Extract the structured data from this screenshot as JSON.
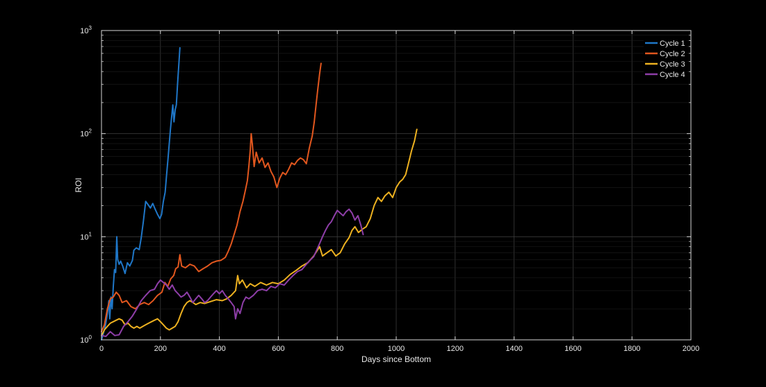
{
  "chart_data": {
    "type": "line",
    "title": "",
    "xlabel": "Days since Bottom",
    "ylabel": "ROI",
    "xlim": [
      0,
      2000
    ],
    "ylim": [
      1,
      1000
    ],
    "y_scale": "log",
    "grid": true,
    "legend_position": "top-right",
    "x_ticks": [
      0,
      200,
      400,
      600,
      800,
      1000,
      1200,
      1400,
      1600,
      1800,
      2000
    ],
    "x_tick_labels": [
      "0",
      "200",
      "400",
      "600",
      "800",
      "1000",
      "1200",
      "1400",
      "1600",
      "1800",
      "2000"
    ],
    "y_ticks": [
      {
        "value": 1,
        "base": "10",
        "exp": "0"
      },
      {
        "value": 10,
        "base": "10",
        "exp": "1"
      },
      {
        "value": 100,
        "base": "10",
        "exp": "2"
      },
      {
        "value": 1000,
        "base": "10",
        "exp": "3"
      }
    ],
    "colors": {
      "background": "#000000",
      "axes_face": "#000000",
      "axis_line": "#d9d9d9",
      "grid": "#3a3a3a",
      "text": "#e8e8e8"
    },
    "series": [
      {
        "name": "Cycle 1",
        "color": "#1f77c8",
        "points": [
          [
            0,
            1.0
          ],
          [
            8,
            1.2
          ],
          [
            14,
            1.4
          ],
          [
            20,
            1.8
          ],
          [
            25,
            2.4
          ],
          [
            28,
            1.6
          ],
          [
            32,
            2.6
          ],
          [
            36,
            2.0
          ],
          [
            40,
            3.3
          ],
          [
            44,
            4.8
          ],
          [
            48,
            4.5
          ],
          [
            52,
            10.0
          ],
          [
            55,
            6.0
          ],
          [
            60,
            5.4
          ],
          [
            65,
            5.8
          ],
          [
            72,
            5.2
          ],
          [
            80,
            4.4
          ],
          [
            88,
            5.6
          ],
          [
            96,
            5.2
          ],
          [
            105,
            5.9
          ],
          [
            110,
            7.4
          ],
          [
            118,
            7.8
          ],
          [
            128,
            7.5
          ],
          [
            135,
            9.8
          ],
          [
            142,
            14.0
          ],
          [
            150,
            22.0
          ],
          [
            158,
            20.5
          ],
          [
            166,
            19.0
          ],
          [
            174,
            21.0
          ],
          [
            182,
            18.5
          ],
          [
            190,
            16.5
          ],
          [
            198,
            15.0
          ],
          [
            204,
            16.5
          ],
          [
            210,
            22.0
          ],
          [
            216,
            27.0
          ],
          [
            221,
            40.0
          ],
          [
            226,
            58.0
          ],
          [
            230,
            80.0
          ],
          [
            234,
            110.0
          ],
          [
            238,
            145.0
          ],
          [
            242,
            190.0
          ],
          [
            246,
            130.0
          ],
          [
            250,
            170.0
          ],
          [
            254,
            190.0
          ],
          [
            258,
            300.0
          ],
          [
            262,
            450.0
          ],
          [
            266,
            680.0
          ]
        ]
      },
      {
        "name": "Cycle 2",
        "color": "#e2571e",
        "points": [
          [
            0,
            1.2
          ],
          [
            10,
            1.4
          ],
          [
            20,
            2.0
          ],
          [
            30,
            2.5
          ],
          [
            40,
            2.6
          ],
          [
            50,
            2.9
          ],
          [
            60,
            2.7
          ],
          [
            70,
            2.3
          ],
          [
            85,
            2.4
          ],
          [
            100,
            2.1
          ],
          [
            115,
            2.0
          ],
          [
            130,
            2.2
          ],
          [
            145,
            2.3
          ],
          [
            160,
            2.2
          ],
          [
            175,
            2.4
          ],
          [
            190,
            2.7
          ],
          [
            205,
            2.9
          ],
          [
            215,
            3.6
          ],
          [
            225,
            3.3
          ],
          [
            235,
            3.9
          ],
          [
            245,
            4.2
          ],
          [
            252,
            4.9
          ],
          [
            260,
            5.1
          ],
          [
            266,
            6.7
          ],
          [
            272,
            5.2
          ],
          [
            285,
            5.0
          ],
          [
            300,
            5.4
          ],
          [
            315,
            5.2
          ],
          [
            330,
            4.6
          ],
          [
            345,
            4.9
          ],
          [
            360,
            5.2
          ],
          [
            375,
            5.6
          ],
          [
            390,
            5.8
          ],
          [
            405,
            5.9
          ],
          [
            420,
            6.3
          ],
          [
            430,
            7.2
          ],
          [
            440,
            8.5
          ],
          [
            450,
            10.5
          ],
          [
            460,
            13.0
          ],
          [
            470,
            17.5
          ],
          [
            480,
            22.0
          ],
          [
            488,
            28.0
          ],
          [
            495,
            35.0
          ],
          [
            500,
            48.0
          ],
          [
            505,
            70.0
          ],
          [
            508,
            100.0
          ],
          [
            512,
            78.0
          ],
          [
            518,
            48.0
          ],
          [
            525,
            66.0
          ],
          [
            535,
            52.0
          ],
          [
            545,
            58.0
          ],
          [
            555,
            47.0
          ],
          [
            565,
            52.0
          ],
          [
            575,
            43.0
          ],
          [
            585,
            38.0
          ],
          [
            595,
            30.0
          ],
          [
            605,
            37.0
          ],
          [
            615,
            42.0
          ],
          [
            625,
            40.0
          ],
          [
            635,
            45.0
          ],
          [
            645,
            52.0
          ],
          [
            655,
            50.0
          ],
          [
            665,
            55.0
          ],
          [
            675,
            58.0
          ],
          [
            685,
            56.0
          ],
          [
            695,
            51.0
          ],
          [
            705,
            72.0
          ],
          [
            715,
            95.0
          ],
          [
            722,
            130.0
          ],
          [
            728,
            190.0
          ],
          [
            734,
            270.0
          ],
          [
            740,
            380.0
          ],
          [
            745,
            480.0
          ]
        ]
      },
      {
        "name": "Cycle 3",
        "color": "#edb120",
        "points": [
          [
            0,
            1.1
          ],
          [
            10,
            1.25
          ],
          [
            20,
            1.35
          ],
          [
            30,
            1.45
          ],
          [
            40,
            1.5
          ],
          [
            50,
            1.55
          ],
          [
            60,
            1.6
          ],
          [
            70,
            1.55
          ],
          [
            80,
            1.4
          ],
          [
            90,
            1.45
          ],
          [
            100,
            1.35
          ],
          [
            110,
            1.3
          ],
          [
            120,
            1.35
          ],
          [
            130,
            1.3
          ],
          [
            140,
            1.35
          ],
          [
            150,
            1.4
          ],
          [
            160,
            1.45
          ],
          [
            170,
            1.5
          ],
          [
            180,
            1.55
          ],
          [
            190,
            1.6
          ],
          [
            200,
            1.5
          ],
          [
            210,
            1.4
          ],
          [
            220,
            1.3
          ],
          [
            230,
            1.25
          ],
          [
            240,
            1.3
          ],
          [
            250,
            1.35
          ],
          [
            260,
            1.5
          ],
          [
            270,
            1.8
          ],
          [
            280,
            2.1
          ],
          [
            290,
            2.3
          ],
          [
            300,
            2.4
          ],
          [
            310,
            2.3
          ],
          [
            320,
            2.2
          ],
          [
            335,
            2.3
          ],
          [
            350,
            2.25
          ],
          [
            370,
            2.35
          ],
          [
            390,
            2.45
          ],
          [
            410,
            2.4
          ],
          [
            425,
            2.5
          ],
          [
            440,
            2.7
          ],
          [
            455,
            3.0
          ],
          [
            462,
            4.2
          ],
          [
            468,
            3.5
          ],
          [
            478,
            3.8
          ],
          [
            492,
            3.2
          ],
          [
            505,
            3.5
          ],
          [
            520,
            3.3
          ],
          [
            540,
            3.6
          ],
          [
            560,
            3.4
          ],
          [
            580,
            3.6
          ],
          [
            600,
            3.5
          ],
          [
            620,
            3.8
          ],
          [
            640,
            4.3
          ],
          [
            660,
            4.7
          ],
          [
            680,
            5.2
          ],
          [
            700,
            5.6
          ],
          [
            720,
            6.5
          ],
          [
            740,
            8.0
          ],
          [
            750,
            6.5
          ],
          [
            765,
            7.0
          ],
          [
            780,
            7.5
          ],
          [
            795,
            6.5
          ],
          [
            810,
            7.0
          ],
          [
            825,
            8.5
          ],
          [
            840,
            9.8
          ],
          [
            850,
            11.5
          ],
          [
            860,
            12.5
          ],
          [
            872,
            11.0
          ],
          [
            885,
            11.8
          ],
          [
            898,
            12.5
          ],
          [
            912,
            15.0
          ],
          [
            925,
            20.0
          ],
          [
            938,
            24.0
          ],
          [
            950,
            22.0
          ],
          [
            962,
            25.0
          ],
          [
            975,
            27.0
          ],
          [
            988,
            24.0
          ],
          [
            1000,
            30.0
          ],
          [
            1012,
            34.0
          ],
          [
            1022,
            36.0
          ],
          [
            1032,
            40.0
          ],
          [
            1042,
            52.0
          ],
          [
            1052,
            68.0
          ],
          [
            1062,
            85.0
          ],
          [
            1070,
            110.0
          ]
        ]
      },
      {
        "name": "Cycle 4",
        "color": "#8e3ea8",
        "points": [
          [
            0,
            1.1
          ],
          [
            15,
            1.08
          ],
          [
            30,
            1.2
          ],
          [
            45,
            1.1
          ],
          [
            60,
            1.12
          ],
          [
            75,
            1.35
          ],
          [
            90,
            1.5
          ],
          [
            105,
            1.7
          ],
          [
            120,
            2.0
          ],
          [
            135,
            2.4
          ],
          [
            150,
            2.7
          ],
          [
            165,
            3.0
          ],
          [
            180,
            3.1
          ],
          [
            190,
            3.5
          ],
          [
            200,
            3.8
          ],
          [
            210,
            3.6
          ],
          [
            220,
            3.4
          ],
          [
            230,
            3.1
          ],
          [
            240,
            3.4
          ],
          [
            250,
            3.0
          ],
          [
            260,
            2.8
          ],
          [
            270,
            2.6
          ],
          [
            280,
            2.7
          ],
          [
            290,
            2.9
          ],
          [
            300,
            2.6
          ],
          [
            310,
            2.3
          ],
          [
            320,
            2.5
          ],
          [
            330,
            2.7
          ],
          [
            340,
            2.5
          ],
          [
            350,
            2.3
          ],
          [
            360,
            2.4
          ],
          [
            370,
            2.6
          ],
          [
            380,
            2.8
          ],
          [
            390,
            3.0
          ],
          [
            400,
            2.8
          ],
          [
            410,
            3.0
          ],
          [
            420,
            2.7
          ],
          [
            430,
            2.5
          ],
          [
            440,
            2.3
          ],
          [
            450,
            2.1
          ],
          [
            455,
            1.6
          ],
          [
            462,
            2.0
          ],
          [
            470,
            1.8
          ],
          [
            480,
            2.3
          ],
          [
            490,
            2.6
          ],
          [
            500,
            2.5
          ],
          [
            515,
            2.7
          ],
          [
            530,
            3.0
          ],
          [
            545,
            3.1
          ],
          [
            560,
            3.0
          ],
          [
            575,
            3.3
          ],
          [
            590,
            3.2
          ],
          [
            605,
            3.5
          ],
          [
            620,
            3.4
          ],
          [
            635,
            3.8
          ],
          [
            650,
            4.2
          ],
          [
            665,
            4.6
          ],
          [
            680,
            4.8
          ],
          [
            695,
            5.4
          ],
          [
            710,
            6.0
          ],
          [
            720,
            6.4
          ],
          [
            730,
            7.4
          ],
          [
            740,
            8.6
          ],
          [
            750,
            10.0
          ],
          [
            760,
            11.5
          ],
          [
            770,
            13.0
          ],
          [
            780,
            14.0
          ],
          [
            790,
            16.0
          ],
          [
            800,
            18.0
          ],
          [
            810,
            17.0
          ],
          [
            820,
            16.0
          ],
          [
            830,
            17.5
          ],
          [
            840,
            18.5
          ],
          [
            850,
            17.0
          ],
          [
            860,
            14.5
          ],
          [
            870,
            16.0
          ],
          [
            880,
            13.0
          ],
          [
            888,
            10.5
          ]
        ]
      }
    ]
  }
}
